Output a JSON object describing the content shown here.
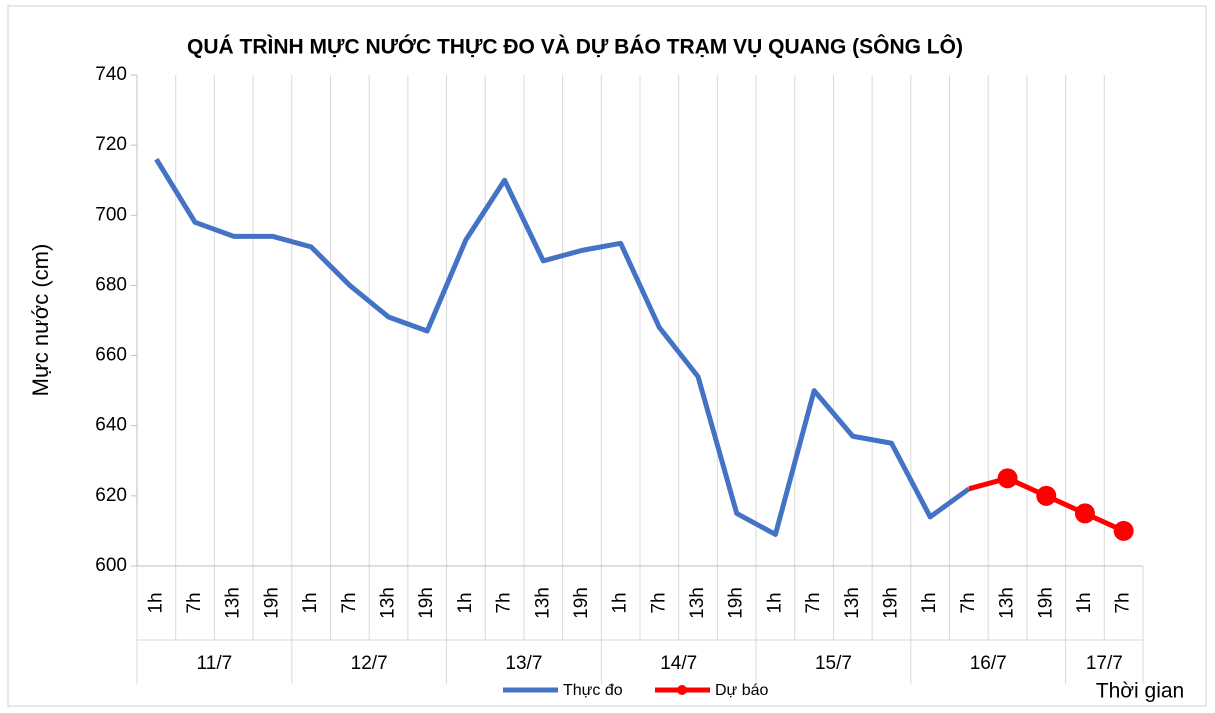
{
  "chart_data": {
    "type": "line",
    "title": "QUÁ TRÌNH MỰC NƯỚC THỰC ĐO VÀ DỰ BÁO TRẠM VỤ QUANG (SÔNG LÔ)",
    "y_label": "Mực nước (cm)",
    "x_label": "Thời gian",
    "groups": [
      {
        "label": "11/7",
        "categories": [
          "1h",
          "7h",
          "13h",
          "19h"
        ]
      },
      {
        "label": "12/7",
        "categories": [
          "1h",
          "7h",
          "13h",
          "19h"
        ]
      },
      {
        "label": "13/7",
        "categories": [
          "1h",
          "7h",
          "13h",
          "19h"
        ]
      },
      {
        "label": "14/7",
        "categories": [
          "1h",
          "7h",
          "13h",
          "19h"
        ]
      },
      {
        "label": "15/7",
        "categories": [
          "1h",
          "7h",
          "13h",
          "19h"
        ]
      },
      {
        "label": "16/7",
        "categories": [
          "1h",
          "7h",
          "13h",
          "19h"
        ]
      },
      {
        "label": "17/7",
        "categories": [
          "1h",
          "7h"
        ]
      }
    ],
    "series": [
      {
        "name": "Thực đo",
        "color": "#4472c4",
        "markers": false,
        "values": [
          716,
          698,
          694,
          694,
          691,
          680,
          671,
          667,
          693,
          710,
          687,
          690,
          692,
          668,
          654,
          615,
          609,
          650,
          637,
          635,
          614,
          622,
          null,
          null,
          null,
          null
        ]
      },
      {
        "name": "Dự báo",
        "color": "#ff0000",
        "markers": true,
        "values": [
          null,
          null,
          null,
          null,
          null,
          null,
          null,
          null,
          null,
          null,
          null,
          null,
          null,
          null,
          null,
          null,
          null,
          null,
          null,
          null,
          null,
          622,
          625,
          620,
          615,
          610
        ]
      }
    ],
    "ylim": [
      600,
      740
    ],
    "yticks": [
      600,
      620,
      640,
      660,
      680,
      700,
      720,
      740
    ],
    "grid": "vertical",
    "legend": "bottom"
  }
}
